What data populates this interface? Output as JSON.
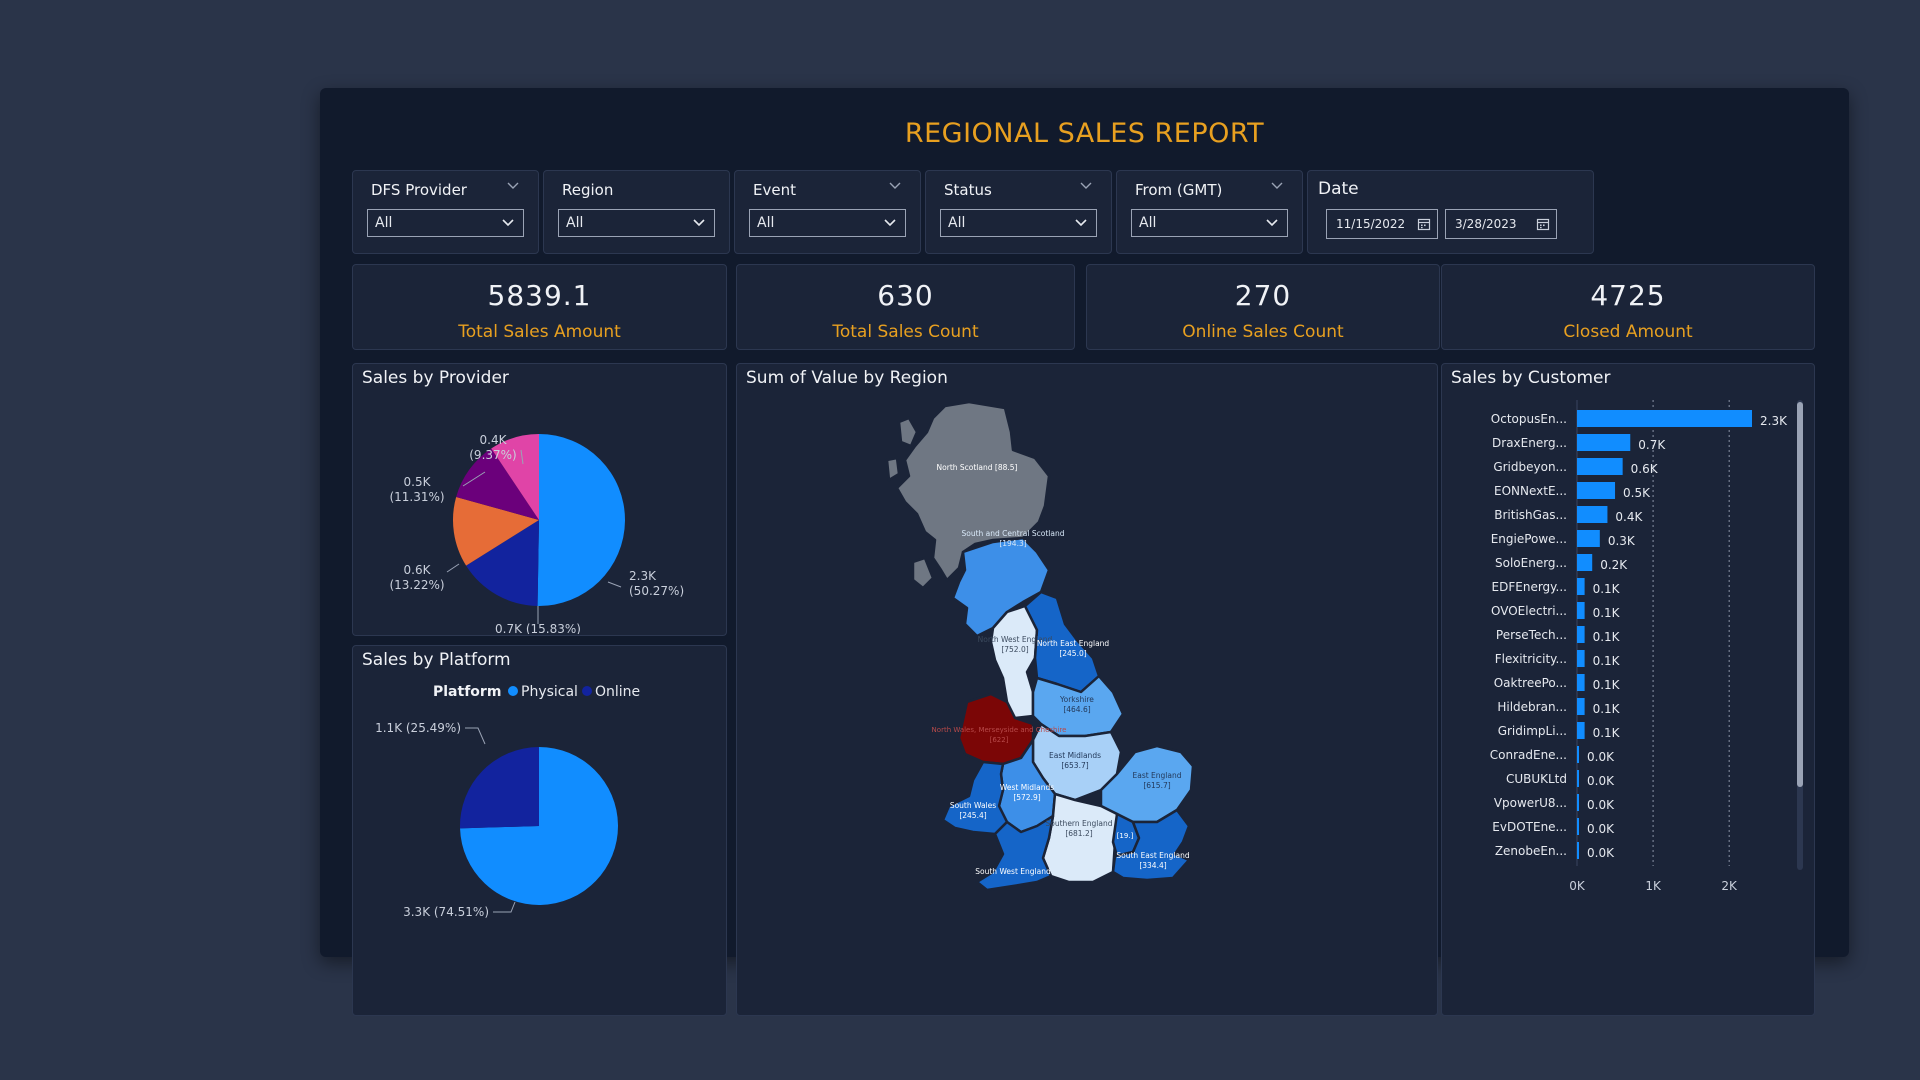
{
  "report": {
    "title": "REGIONAL SALES REPORT"
  },
  "slicers": [
    {
      "label": "DFS Provider",
      "value": "All"
    },
    {
      "label": "Region",
      "value": "All"
    },
    {
      "label": "Event",
      "value": "All"
    },
    {
      "label": "Status",
      "value": "All"
    },
    {
      "label": "From (GMT)",
      "value": "All"
    }
  ],
  "date_slicer": {
    "label": "Date",
    "from": "11/15/2022",
    "to": "3/28/2023"
  },
  "kpis": [
    {
      "value": "5839.1",
      "label": "Total Sales Amount"
    },
    {
      "value": "630",
      "label": "Total Sales Count"
    },
    {
      "value": "270",
      "label": "Online Sales Count"
    },
    {
      "value": "4725",
      "label": "Closed Amount"
    }
  ],
  "colors": {
    "accent": "#e8a020",
    "bar": "#118dff",
    "background": "#111a2c",
    "panel": "#1b2438"
  },
  "chart_data": [
    {
      "type": "pie",
      "title": "Sales by Provider",
      "slices": [
        {
          "label": "2.3K",
          "pct": "(50.27%)",
          "value": 50.27,
          "color": "#118dff"
        },
        {
          "label": "0.7K (15.83%)",
          "pct": "",
          "value": 15.83,
          "color": "#12239e"
        },
        {
          "label": "0.6K",
          "pct": "(13.22%)",
          "value": 13.22,
          "color": "#e66c37"
        },
        {
          "label": "0.5K",
          "pct": "(11.31%)",
          "value": 11.31,
          "color": "#6b007b"
        },
        {
          "label": "0.4K",
          "pct": "(9.37%)",
          "value": 9.37,
          "color": "#e044a7"
        }
      ]
    },
    {
      "type": "pie",
      "title": "Sales by Platform",
      "legend_title": "Platform",
      "legend_position": "top",
      "slices": [
        {
          "name": "Physical",
          "label": "3.3K (74.51%)",
          "value": 74.51,
          "color": "#118dff"
        },
        {
          "name": "Online",
          "label": "1.1K (25.49%)",
          "value": 25.49,
          "color": "#12239e"
        }
      ]
    },
    {
      "type": "map",
      "title": "Sum of Value by Region",
      "regions": [
        {
          "name": "North Scotland",
          "value": "88.5"
        },
        {
          "name": "South and Central Scotland",
          "value": "194.3"
        },
        {
          "name": "North West England",
          "value": "752.0"
        },
        {
          "name": "North East England",
          "value": "245.0"
        },
        {
          "name": "Yorkshire",
          "value": "464.6"
        },
        {
          "name": "North Wales, Merseyside and Cheshire",
          "value": "622"
        },
        {
          "name": "East Midlands",
          "value": "653.7"
        },
        {
          "name": "West Midlands",
          "value": "572.9"
        },
        {
          "name": "East England",
          "value": "615.7"
        },
        {
          "name": "South Wales",
          "value": "245.4"
        },
        {
          "name": "Southern England",
          "value": "681.2"
        },
        {
          "name": "London",
          "value": "19."
        },
        {
          "name": "South East England",
          "value": "334.4"
        },
        {
          "name": "South West England",
          "value": ""
        }
      ]
    },
    {
      "type": "bar",
      "title": "Sales by Customer",
      "orientation": "horizontal",
      "categories": [
        "OctopusEn...",
        "DraxEnerg...",
        "Gridbeyon...",
        "EONNextE...",
        "BritishGas...",
        "EngiePowe...",
        "SoloEnerg...",
        "EDFEnergy...",
        "OVOElectri...",
        "PerseTech...",
        "Flexitricity...",
        "OaktreePo...",
        "Hildebran...",
        "GridimpLi...",
        "ConradEne...",
        "CUBUKLtd",
        "VpowerU8...",
        "EvDOTEne...",
        "ZenobeEn..."
      ],
      "values": [
        2300,
        700,
        600,
        500,
        400,
        300,
        200,
        100,
        100,
        100,
        100,
        100,
        100,
        100,
        0,
        0,
        0,
        0,
        0
      ],
      "labels": [
        "2.3K",
        "0.7K",
        "0.6K",
        "0.5K",
        "0.4K",
        "0.3K",
        "0.2K",
        "0.1K",
        "0.1K",
        "0.1K",
        "0.1K",
        "0.1K",
        "0.1K",
        "0.1K",
        "0.0K",
        "0.0K",
        "0.0K",
        "0.0K",
        "0.0K"
      ],
      "xticks": [
        "0K",
        "1K",
        "2K"
      ],
      "xlim": [
        0,
        2300
      ],
      "grid": true
    }
  ]
}
